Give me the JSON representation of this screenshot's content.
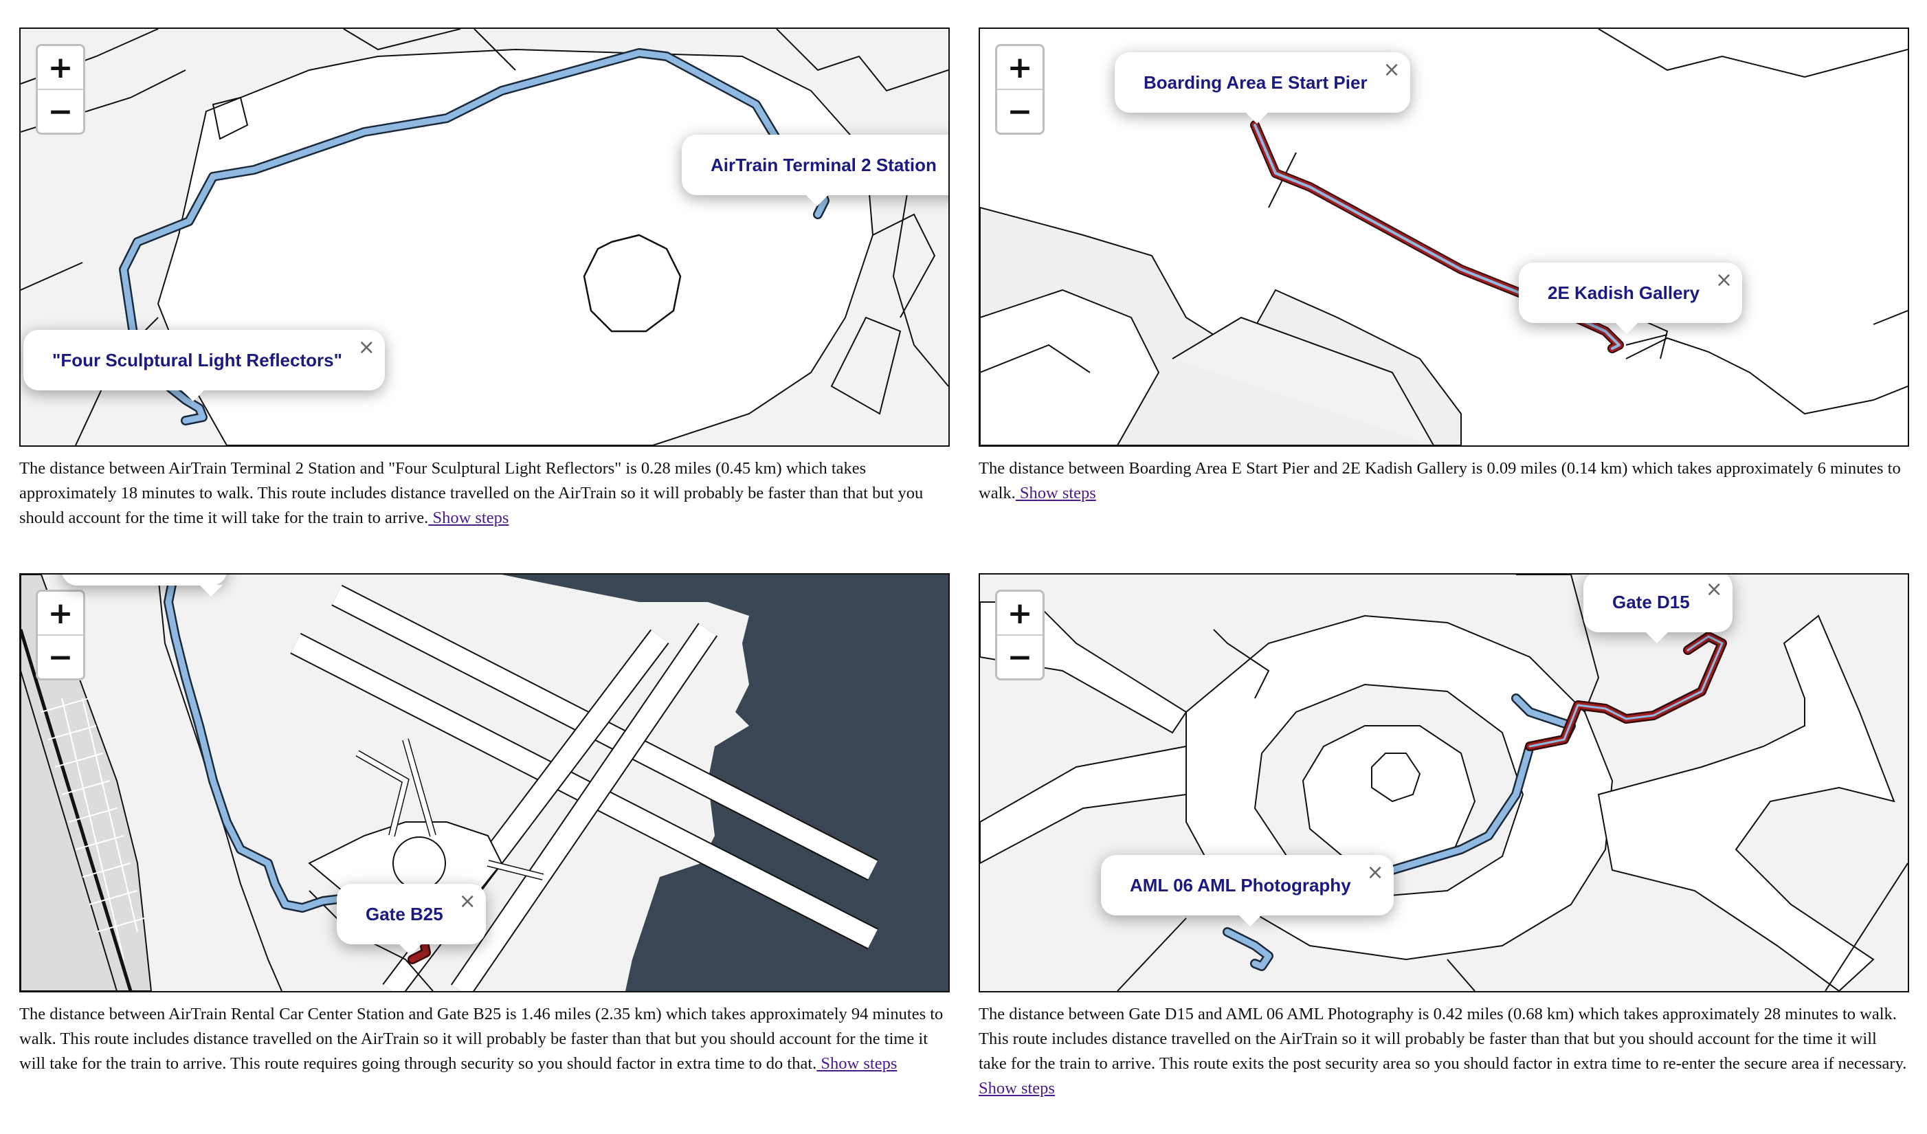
{
  "colors": {
    "route_blue": "#8fb9e0",
    "route_red": "#8b1a1a",
    "water": "#3a4654",
    "land": "#f2f2f2",
    "building": "#ffffff",
    "popup_text": "#1a1a80",
    "link": "#4a1a8c"
  },
  "zoom_controls": {
    "zoom_in_label": "+",
    "zoom_out_label": "−"
  },
  "popup_close_label": "×",
  "show_steps_label": " Show steps",
  "maps": [
    {
      "route_style": "blue",
      "popups": [
        {
          "label": "AirTrain Terminal 2 Station",
          "closable": false
        },
        {
          "label": "\"Four Sculptural Light Reflectors\"",
          "closable": true
        }
      ],
      "description": "The distance between AirTrain Terminal 2 Station and \"Four Sculptural Light Reflectors\" is 0.28 miles (0.45 km) which takes approximately 18 minutes to walk. This route includes distance travelled on the AirTrain so it will probably be faster than that but you should account for the time it will take for the train to arrive."
    },
    {
      "route_style": "red",
      "popups": [
        {
          "label": "Boarding Area E Start Pier",
          "closable": true
        },
        {
          "label": "2E Kadish Gallery",
          "closable": true
        }
      ],
      "description": "The distance between Boarding Area E Start Pier and 2E Kadish Gallery is 0.09 miles (0.14 km) which takes approximately 6 minutes to walk."
    },
    {
      "route_style": "blue-red",
      "popups": [
        {
          "label": "Gate B25",
          "closable": true
        }
      ],
      "description": "The distance between AirTrain Rental Car Center Station and Gate B25 is 1.46 miles (2.35 km) which takes approximately 94 minutes to walk. This route includes distance travelled on the AirTrain so it will probably be faster than that but you should account for the time it will take for the train to arrive. This route requires going through security so you should factor in extra time to do that."
    },
    {
      "route_style": "blue-red",
      "popups": [
        {
          "label": "Gate D15",
          "closable": true
        },
        {
          "label": "AML 06 AML Photography",
          "closable": true
        }
      ],
      "description": "The distance between Gate D15 and AML 06 AML Photography is 0.42 miles (0.68 km) which takes approximately 28 minutes to walk. This route includes distance travelled on the AirTrain so it will probably be faster than that but you should account for the time it will take for the train to arrive. This route exits the post security area so you should factor in extra time to re-enter the secure area if necessary."
    }
  ]
}
